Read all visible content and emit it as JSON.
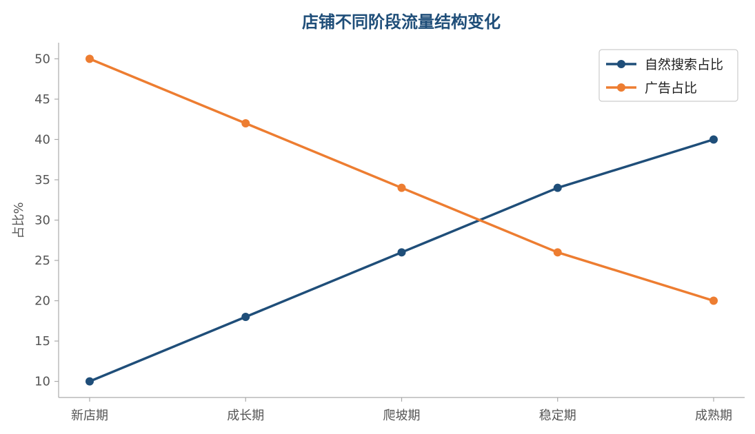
{
  "chart_data": {
    "type": "line",
    "title": "店铺不同阶段流量结构变化",
    "xlabel": "",
    "ylabel": "占比%",
    "categories": [
      "新店期",
      "成长期",
      "爬坡期",
      "稳定期",
      "成熟期"
    ],
    "series": [
      {
        "name": "自然搜索占比",
        "values": [
          10,
          18,
          26,
          34,
          40
        ],
        "color": "#1f4e79"
      },
      {
        "name": "广告占比",
        "values": [
          50,
          42,
          34,
          26,
          20
        ],
        "color": "#ed7d31"
      }
    ],
    "ylim": [
      8,
      52
    ],
    "yticks": [
      10,
      15,
      20,
      25,
      30,
      35,
      40,
      45,
      50
    ],
    "grid": false,
    "legend_position": "top-right"
  },
  "colors": {
    "title": "#1f4e79",
    "axis": "#aaaaaa",
    "tick_text": "#555555",
    "legend_border": "#cccccc"
  }
}
